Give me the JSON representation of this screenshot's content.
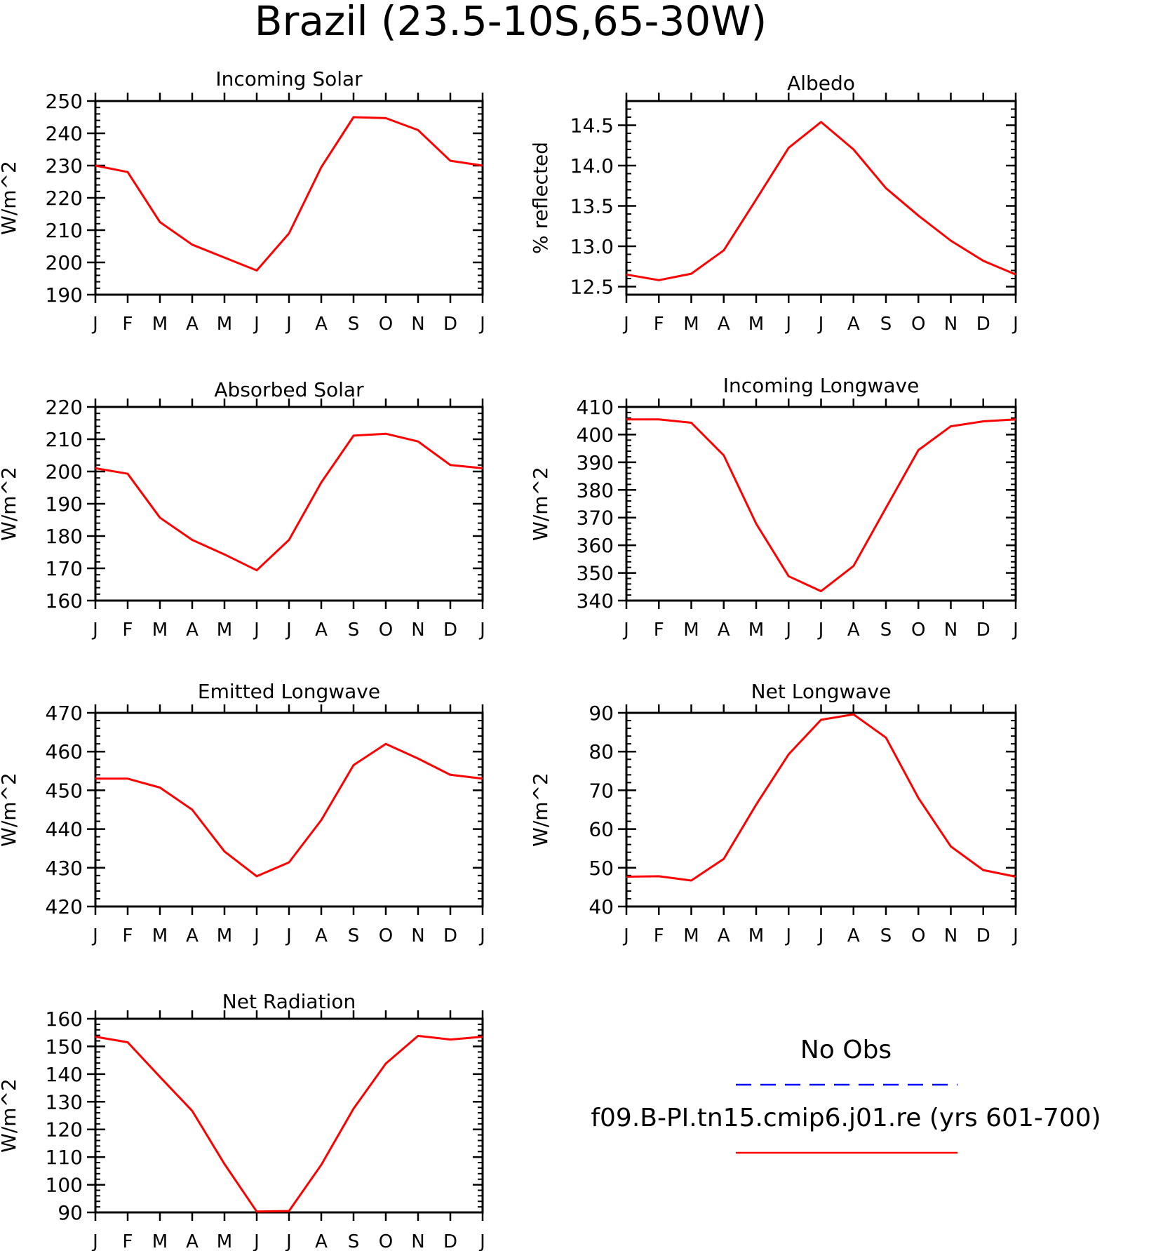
{
  "page_title": "Brazil (23.5-10S,65-30W)",
  "months": [
    "J",
    "F",
    "M",
    "A",
    "M",
    "J",
    "J",
    "A",
    "S",
    "O",
    "N",
    "D",
    "J"
  ],
  "model_color": "#ff0000",
  "obs_color": "#0000ff",
  "legend": {
    "obs_label": "No Obs",
    "model_label": "f09.B-PI.tn15.cmip6.j01.re (yrs 601-700)"
  },
  "chart_data": [
    {
      "id": "incoming-solar",
      "type": "line",
      "title": "Incoming Solar",
      "ylabel": "W/m^2",
      "ylim": [
        190,
        250
      ],
      "yticks": [
        190,
        200,
        210,
        220,
        230,
        240,
        250
      ],
      "ytick_labels": [
        "190",
        "200",
        "210",
        "220",
        "230",
        "240",
        "250"
      ],
      "x": [
        "J",
        "F",
        "M",
        "A",
        "M",
        "J",
        "J",
        "A",
        "S",
        "O",
        "N",
        "D",
        "J"
      ],
      "series": [
        {
          "values": [
            230,
            228,
            212.5,
            205.5,
            201.5,
            197.5,
            209,
            229.5,
            245,
            244.7,
            241,
            231.5,
            230
          ]
        }
      ]
    },
    {
      "id": "albedo",
      "type": "line",
      "title": "Albedo",
      "ylabel": "% reflected",
      "ylim": [
        12.4,
        14.8
      ],
      "yticks": [
        12.5,
        13.0,
        13.5,
        14.0,
        14.5
      ],
      "ytick_labels": [
        "12.5",
        "13.0",
        "13.5",
        "14.0",
        "14.5"
      ],
      "x": [
        "J",
        "F",
        "M",
        "A",
        "M",
        "J",
        "J",
        "A",
        "S",
        "O",
        "N",
        "D",
        "J"
      ],
      "series": [
        {
          "values": [
            12.65,
            12.58,
            12.66,
            12.95,
            13.58,
            14.22,
            14.54,
            14.2,
            13.72,
            13.38,
            13.07,
            12.82,
            12.65
          ]
        }
      ]
    },
    {
      "id": "absorbed-solar",
      "type": "line",
      "title": "Absorbed Solar",
      "ylabel": "W/m^2",
      "ylim": [
        160,
        220
      ],
      "yticks": [
        160,
        170,
        180,
        190,
        200,
        210,
        220
      ],
      "ytick_labels": [
        "160",
        "170",
        "180",
        "190",
        "200",
        "210",
        "220"
      ],
      "x": [
        "J",
        "F",
        "M",
        "A",
        "M",
        "J",
        "J",
        "A",
        "S",
        "O",
        "N",
        "D",
        "J"
      ],
      "series": [
        {
          "values": [
            201,
            199.3,
            185.7,
            178.8,
            174.3,
            169.4,
            178.8,
            196.6,
            211.1,
            211.7,
            209.3,
            202,
            201
          ]
        }
      ]
    },
    {
      "id": "incoming-longwave",
      "type": "line",
      "title": "Incoming Longwave",
      "ylabel": "W/m^2",
      "ylim": [
        340,
        410
      ],
      "yticks": [
        340,
        350,
        360,
        370,
        380,
        390,
        400,
        410
      ],
      "ytick_labels": [
        "340",
        "350",
        "360",
        "370",
        "380",
        "390",
        "400",
        "410"
      ],
      "x": [
        "J",
        "F",
        "M",
        "A",
        "M",
        "J",
        "J",
        "A",
        "S",
        "O",
        "N",
        "D",
        "J"
      ],
      "series": [
        {
          "values": [
            405.5,
            405.5,
            404.3,
            392.5,
            367.8,
            348.8,
            343.4,
            352.5,
            373.5,
            394.4,
            403,
            404.8,
            405.5
          ]
        }
      ]
    },
    {
      "id": "emitted-longwave",
      "type": "line",
      "title": "Emitted Longwave",
      "ylabel": "W/m^2",
      "ylim": [
        420,
        470
      ],
      "yticks": [
        420,
        430,
        440,
        450,
        460,
        470
      ],
      "ytick_labels": [
        "420",
        "430",
        "440",
        "450",
        "460",
        "470"
      ],
      "x": [
        "J",
        "F",
        "M",
        "A",
        "M",
        "J",
        "J",
        "A",
        "S",
        "O",
        "N",
        "D",
        "J"
      ],
      "series": [
        {
          "values": [
            453,
            453,
            450.7,
            445,
            434.2,
            427.8,
            431.4,
            442.3,
            456.5,
            462,
            458.2,
            454,
            453
          ]
        }
      ]
    },
    {
      "id": "net-longwave",
      "type": "line",
      "title": "Net Longwave",
      "ylabel": "W/m^2",
      "ylim": [
        40,
        90
      ],
      "yticks": [
        40,
        50,
        60,
        70,
        80,
        90
      ],
      "ytick_labels": [
        "40",
        "50",
        "60",
        "70",
        "80",
        "90"
      ],
      "x": [
        "J",
        "F",
        "M",
        "A",
        "M",
        "J",
        "J",
        "A",
        "S",
        "O",
        "N",
        "D",
        "J"
      ],
      "series": [
        {
          "values": [
            47.7,
            47.8,
            46.7,
            52.3,
            66.3,
            79.3,
            88.2,
            89.6,
            83.6,
            68,
            55.5,
            49.4,
            47.7
          ]
        }
      ]
    },
    {
      "id": "net-radiation",
      "type": "line",
      "title": "Net Radiation",
      "ylabel": "W/m^2",
      "ylim": [
        90,
        160
      ],
      "yticks": [
        90,
        100,
        110,
        120,
        130,
        140,
        150,
        160
      ],
      "ytick_labels": [
        "90",
        "100",
        "110",
        "120",
        "130",
        "140",
        "150",
        "160"
      ],
      "x": [
        "J",
        "F",
        "M",
        "A",
        "M",
        "J",
        "J",
        "A",
        "S",
        "O",
        "N",
        "D",
        "J"
      ],
      "series": [
        {
          "values": [
            153.5,
            151.5,
            139,
            126.7,
            107.5,
            90.3,
            90.5,
            107.2,
            127.5,
            143.8,
            153.8,
            152.5,
            153.5
          ]
        }
      ]
    }
  ]
}
